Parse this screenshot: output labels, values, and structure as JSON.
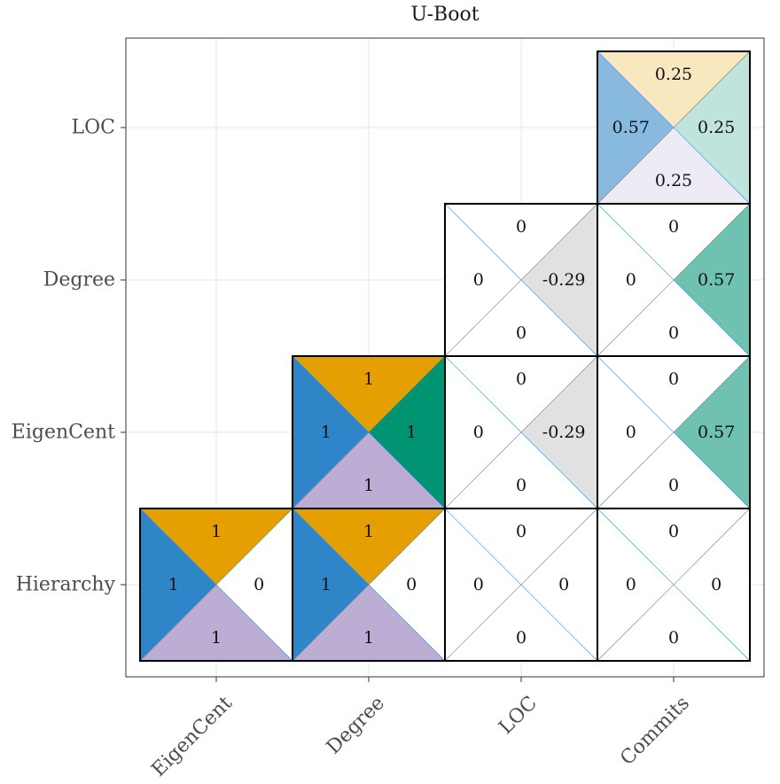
{
  "chart_data": {
    "type": "heatmap",
    "title": "U-Boot",
    "xlabel": "",
    "ylabel": "",
    "x_categories": [
      "EigenCent",
      "Degree",
      "LOC",
      "Commits"
    ],
    "y_categories": [
      "Hierarchy",
      "EigenCent",
      "Degree",
      "LOC"
    ],
    "grid": true,
    "cell_layout": "each cell split into four triangles (top, left, right, bottom) with one value per triangle",
    "triangle_colors": {
      "top": "#E69F00",
      "left": "#2E86C8",
      "right": "#009473",
      "bottom": "#BBADD3"
    },
    "negative_color": "#999999",
    "cells": [
      {
        "x": "EigenCent",
        "y": "Hierarchy",
        "top": "1",
        "left": "1",
        "right": "0",
        "bottom": "1"
      },
      {
        "x": "Degree",
        "y": "Hierarchy",
        "top": "1",
        "left": "1",
        "right": "0",
        "bottom": "1"
      },
      {
        "x": "LOC",
        "y": "Hierarchy",
        "top": "0",
        "left": "0",
        "right": "0",
        "bottom": "0"
      },
      {
        "x": "Commits",
        "y": "Hierarchy",
        "top": "0",
        "left": "0",
        "right": "0",
        "bottom": "0"
      },
      {
        "x": "Degree",
        "y": "EigenCent",
        "top": "1",
        "left": "1",
        "right": "1",
        "bottom": "1"
      },
      {
        "x": "LOC",
        "y": "EigenCent",
        "top": "0",
        "left": "0",
        "right": "-0.29",
        "bottom": "0"
      },
      {
        "x": "Commits",
        "y": "EigenCent",
        "top": "0",
        "left": "0",
        "right": "0.57",
        "bottom": "0"
      },
      {
        "x": "LOC",
        "y": "Degree",
        "top": "0",
        "left": "0",
        "right": "-0.29",
        "bottom": "0"
      },
      {
        "x": "Commits",
        "y": "Degree",
        "top": "0",
        "left": "0",
        "right": "0.57",
        "bottom": "0"
      },
      {
        "x": "Commits",
        "y": "LOC",
        "top": "0.25",
        "left": "0.57",
        "right": "0.25",
        "bottom": "0.25"
      }
    ]
  }
}
